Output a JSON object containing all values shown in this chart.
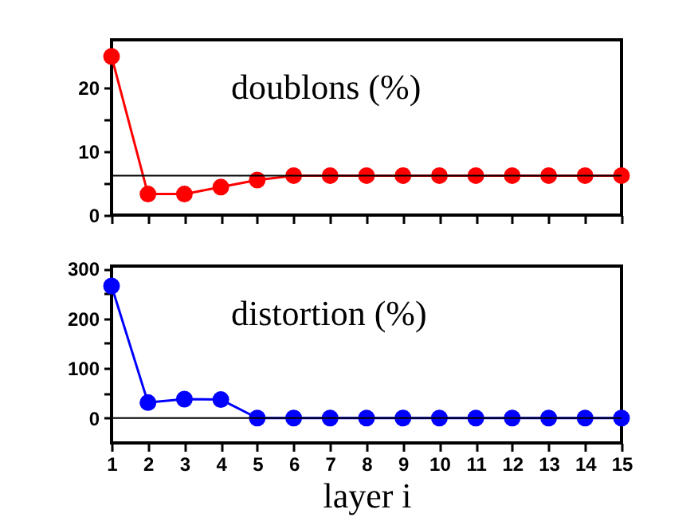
{
  "chart_data": [
    {
      "type": "line",
      "annotations": [
        "doublons (%)"
      ],
      "x": [
        1,
        2,
        3,
        4,
        5,
        6,
        7,
        8,
        9,
        10,
        11,
        12,
        13,
        14,
        15
      ],
      "series": [
        {
          "color": "#ff0000",
          "values": [
            24.9,
            3.3,
            3.3,
            4.4,
            5.5,
            6.2,
            6.2,
            6.2,
            6.2,
            6.2,
            6.2,
            6.2,
            6.2,
            6.2,
            6.2
          ]
        }
      ],
      "xlim": [
        1,
        15
      ],
      "xticks": [
        1,
        2,
        3,
        4,
        5,
        6,
        7,
        8,
        9,
        10,
        11,
        12,
        13,
        14,
        15
      ],
      "ylim": [
        0,
        27.5
      ],
      "yticks": [
        0,
        {
          "value": 5,
          "label": null
        },
        10,
        {
          "value": 15,
          "label": null
        },
        20,
        {
          "value": 25,
          "label": null
        }
      ],
      "ref_lines": [
        {
          "axis": "y",
          "value": 6.2,
          "color": "#000000"
        }
      ],
      "marker": "circle",
      "grid": false,
      "tick_labels": "y"
    },
    {
      "type": "line",
      "annotations": [
        "distortion (%)"
      ],
      "xlabel": "layer i",
      "x": [
        1,
        2,
        3,
        4,
        5,
        6,
        7,
        8,
        9,
        10,
        11,
        12,
        13,
        14,
        15
      ],
      "series": [
        {
          "color": "#0000ff",
          "values": [
            265,
            31,
            38,
            37,
            0,
            0,
            0,
            0,
            0,
            0,
            0,
            0,
            0,
            0,
            0
          ]
        }
      ],
      "xlim": [
        1,
        15
      ],
      "xticks": [
        1,
        2,
        3,
        4,
        5,
        6,
        7,
        8,
        9,
        10,
        11,
        12,
        13,
        14,
        15
      ],
      "ylim": [
        -50,
        305
      ],
      "yticks": [
        0,
        {
          "value": 50,
          "label": null
        },
        100,
        {
          "value": 150,
          "label": null
        },
        200,
        {
          "value": 250,
          "label": null
        },
        300
      ],
      "ref_lines": [
        {
          "axis": "y",
          "value": 0,
          "color": "#000000"
        }
      ],
      "marker": "circle",
      "grid": false
    }
  ]
}
